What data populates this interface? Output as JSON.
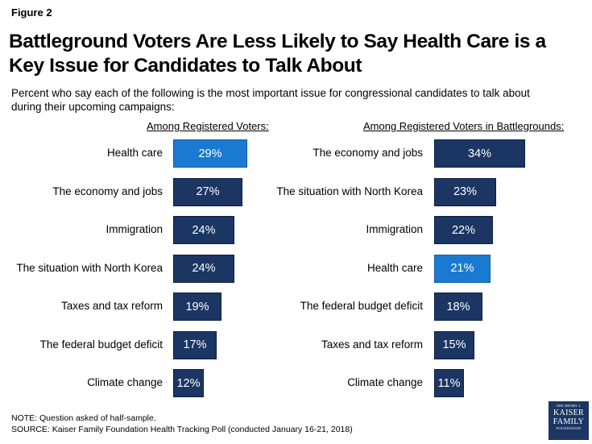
{
  "figure_label": "Figure 2",
  "logo": {
    "line1": "THE HENRY J.",
    "line2": "KAISER",
    "line3": "FAMILY",
    "line4": "FOUNDATION"
  },
  "footnotes": {
    "note": "NOTE: Question asked of half-sample.",
    "source": "SOURCE: Kaiser Family Foundation Health Tracking Poll (conducted January 16-21, 2018)"
  },
  "colors": {
    "bar": "#1b3663",
    "highlight": "#1a7ad1"
  },
  "chart_data": {
    "type": "bar",
    "orientation": "horizontal",
    "title": "Battleground Voters Are Less Likely to Say Health Care is a Key Issue for Candidates to Talk About",
    "subtitle": "Percent who say each of the following is the most important issue for congressional candidates to talk about during their upcoming campaigns:",
    "xlim": [
      0,
      100
    ],
    "grid": false,
    "panels": [
      {
        "heading": "Among Registered Voters:",
        "categories": [
          "Health care",
          "The economy and jobs",
          "Immigration",
          "The situation with North Korea",
          "Taxes and tax reform",
          "The federal budget deficit",
          "Climate change"
        ],
        "values": [
          29,
          27,
          24,
          24,
          19,
          17,
          12
        ],
        "value_labels": [
          "29%",
          "27%",
          "24%",
          "24%",
          "19%",
          "17%",
          "12%"
        ],
        "highlighted": "Health care"
      },
      {
        "heading": "Among Registered Voters in Battlegrounds:",
        "categories": [
          "The economy and jobs",
          "The situation with North Korea",
          "Immigration",
          "Health care",
          "The federal budget deficit",
          "Taxes and tax reform",
          "Climate change"
        ],
        "values": [
          34,
          23,
          22,
          21,
          18,
          15,
          11
        ],
        "value_labels": [
          "34%",
          "23%",
          "22%",
          "21%",
          "18%",
          "15%",
          "11%"
        ],
        "highlighted": "Health care"
      }
    ]
  }
}
